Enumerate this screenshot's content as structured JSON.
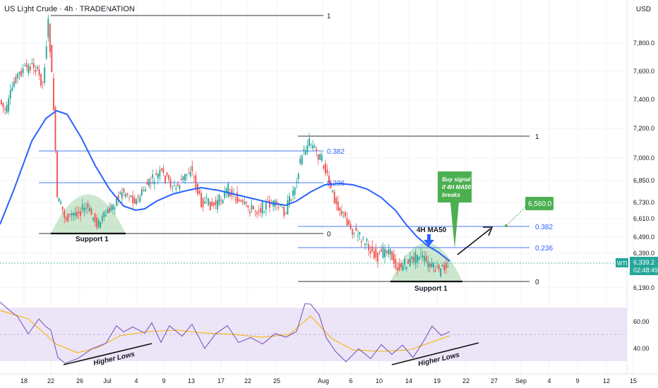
{
  "header": {
    "symbol_title": "US Light Crude · 4h · TRADENATION",
    "currency": "USD"
  },
  "price_axis": {
    "labels": [
      "7,800.0",
      "7,600.0",
      "7,400.0",
      "7,200.0",
      "7,000.0",
      "6,850.0",
      "6,730.0",
      "6,610.0",
      "6,490.0",
      "6,390.0",
      "6,190.0"
    ],
    "rsi_labels": [
      "60.00",
      "40.00"
    ],
    "last_price_label": "6,339.2",
    "countdown": "02:48:49",
    "symbol_tag": "WTI"
  },
  "time_axis": {
    "labels": [
      "18",
      "22",
      "26",
      "Jul",
      "4",
      "9",
      "13",
      "17",
      "22",
      "25",
      "Aug",
      "6",
      "10",
      "14",
      "19",
      "22",
      "27",
      "Sep",
      "4",
      "9",
      "12",
      "15"
    ]
  },
  "annotations": {
    "fib_1_top": "1",
    "fib_0_left": "0",
    "fib_1_right": "1",
    "fib_382_mid": "0.382",
    "fib_236_mid": "0.236",
    "fib_382_right": "0.382",
    "fib_236_right": "0.236",
    "fib_0_right": "0",
    "support_1_left": "Support 1",
    "support_1_right": "Support 1",
    "ma_label": "4H MA50",
    "signal_text": [
      "Buy signal",
      "if 4H MA50",
      "breaks"
    ],
    "target_label": "6,560.0",
    "rsi_higher_lows_left": "Higher Lows",
    "rsi_higher_lows_right": "Higher Lows"
  },
  "colors": {
    "up": "#26a69a",
    "down": "#ef5350",
    "ma50": "#2962ff",
    "fib_blue": "#2962ff",
    "rsi": "#7e57c2",
    "rsi_ma": "#f7b500",
    "signal_green": "#4caf50",
    "dome": "#cde7cf"
  },
  "chart_data": {
    "type": "candlestick",
    "symbol": "US Light Crude",
    "timeframe": "4h",
    "close_path": [
      {
        "x": "Jun 13",
        "y": 7400
      },
      {
        "x": "Jun 17",
        "y": 7550
      },
      {
        "x": "Jun 20",
        "y": 7650
      },
      {
        "x": "Jun 22",
        "y": 7950
      },
      {
        "x": "Jun 23",
        "y": 6620
      },
      {
        "x": "Jun 25",
        "y": 6600
      },
      {
        "x": "Jun 27",
        "y": 6640
      },
      {
        "x": "Jun 30",
        "y": 6580
      },
      {
        "x": "Jul 2",
        "y": 6790
      },
      {
        "x": "Jul 7",
        "y": 6920
      },
      {
        "x": "Jul 10",
        "y": 6720
      },
      {
        "x": "Jul 14",
        "y": 6880
      },
      {
        "x": "Jul 17",
        "y": 6630
      },
      {
        "x": "Jul 21",
        "y": 6780
      },
      {
        "x": "Jul 23",
        "y": 6640
      },
      {
        "x": "Jul 25",
        "y": 6620
      },
      {
        "x": "Jul 28",
        "y": 6820
      },
      {
        "x": "Jul 30",
        "y": 7120
      },
      {
        "x": "Aug 1",
        "y": 6900
      },
      {
        "x": "Aug 4",
        "y": 6580
      },
      {
        "x": "Aug 6",
        "y": 6450
      },
      {
        "x": "Aug 8",
        "y": 6320
      },
      {
        "x": "Aug 12",
        "y": 6380
      },
      {
        "x": "Aug 14",
        "y": 6260
      },
      {
        "x": "Aug 18",
        "y": 6340
      },
      {
        "x": "Aug 20",
        "y": 6339.2
      }
    ],
    "last_price": 6339.2,
    "fibonacci": [
      {
        "level": "1",
        "price": 7950
      },
      {
        "level": "0.382",
        "price": 7040
      },
      {
        "level": "0.236",
        "price": 6820
      },
      {
        "level": "0",
        "price": 6500
      },
      {
        "level": "1",
        "price": 7150
      },
      {
        "level": "0.382",
        "price": 6530
      },
      {
        "level": "0.236",
        "price": 6420
      },
      {
        "level": "0",
        "price": 6230
      }
    ],
    "support_levels": [
      "Support 1",
      "Support 1"
    ],
    "target_price": 6560.0,
    "indicators": [
      "4H MA50",
      "RSI"
    ],
    "rsi_levels": [
      40,
      60
    ],
    "x_ticks": [
      "18",
      "22",
      "26",
      "Jul",
      "4",
      "9",
      "13",
      "17",
      "22",
      "25",
      "Aug",
      "6",
      "10",
      "14",
      "19",
      "22",
      "27",
      "Sep",
      "4",
      "9",
      "12",
      "15"
    ]
  }
}
